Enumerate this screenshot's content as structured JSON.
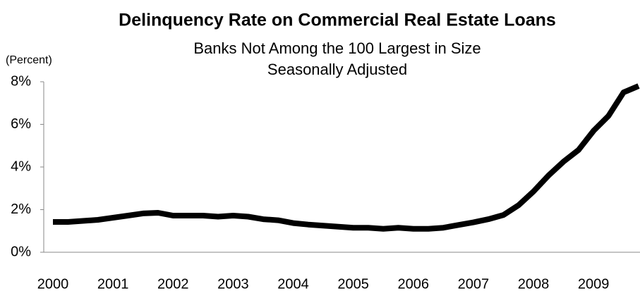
{
  "chart_data": {
    "type": "line",
    "title": "Delinquency Rate on Commercial Real Estate Loans",
    "subtitle": [
      "Banks Not Among the 100  Largest in Size",
      "Seasonally Adjusted"
    ],
    "y_label": "(Percent)",
    "categories": [
      "2000",
      null,
      null,
      null,
      "2001",
      null,
      null,
      null,
      "2002",
      null,
      null,
      null,
      "2003",
      null,
      null,
      null,
      "2004",
      null,
      null,
      null,
      "2005",
      null,
      null,
      null,
      "2006",
      null,
      null,
      null,
      "2007",
      null,
      null,
      null,
      "2008",
      null,
      null,
      null,
      "2009",
      null,
      null,
      null
    ],
    "series": [
      {
        "name": "Delinquency rate",
        "color": "#000000",
        "values": [
          1.42,
          1.42,
          1.47,
          1.52,
          1.62,
          1.72,
          1.82,
          1.85,
          1.72,
          1.72,
          1.72,
          1.67,
          1.72,
          1.67,
          1.55,
          1.5,
          1.37,
          1.3,
          1.25,
          1.2,
          1.15,
          1.15,
          1.1,
          1.15,
          1.1,
          1.1,
          1.15,
          1.28,
          1.4,
          1.55,
          1.75,
          2.2,
          2.85,
          3.6,
          4.25,
          4.8,
          5.7,
          6.4,
          7.5,
          7.8
        ]
      }
    ],
    "ylim": [
      0,
      8
    ],
    "yticks": [
      {
        "value": 0,
        "label": "0%"
      },
      {
        "value": 2,
        "label": "2%"
      },
      {
        "value": 4,
        "label": "4%"
      },
      {
        "value": 6,
        "label": "6%"
      },
      {
        "value": 8,
        "label": "8%"
      }
    ],
    "grid": false
  }
}
